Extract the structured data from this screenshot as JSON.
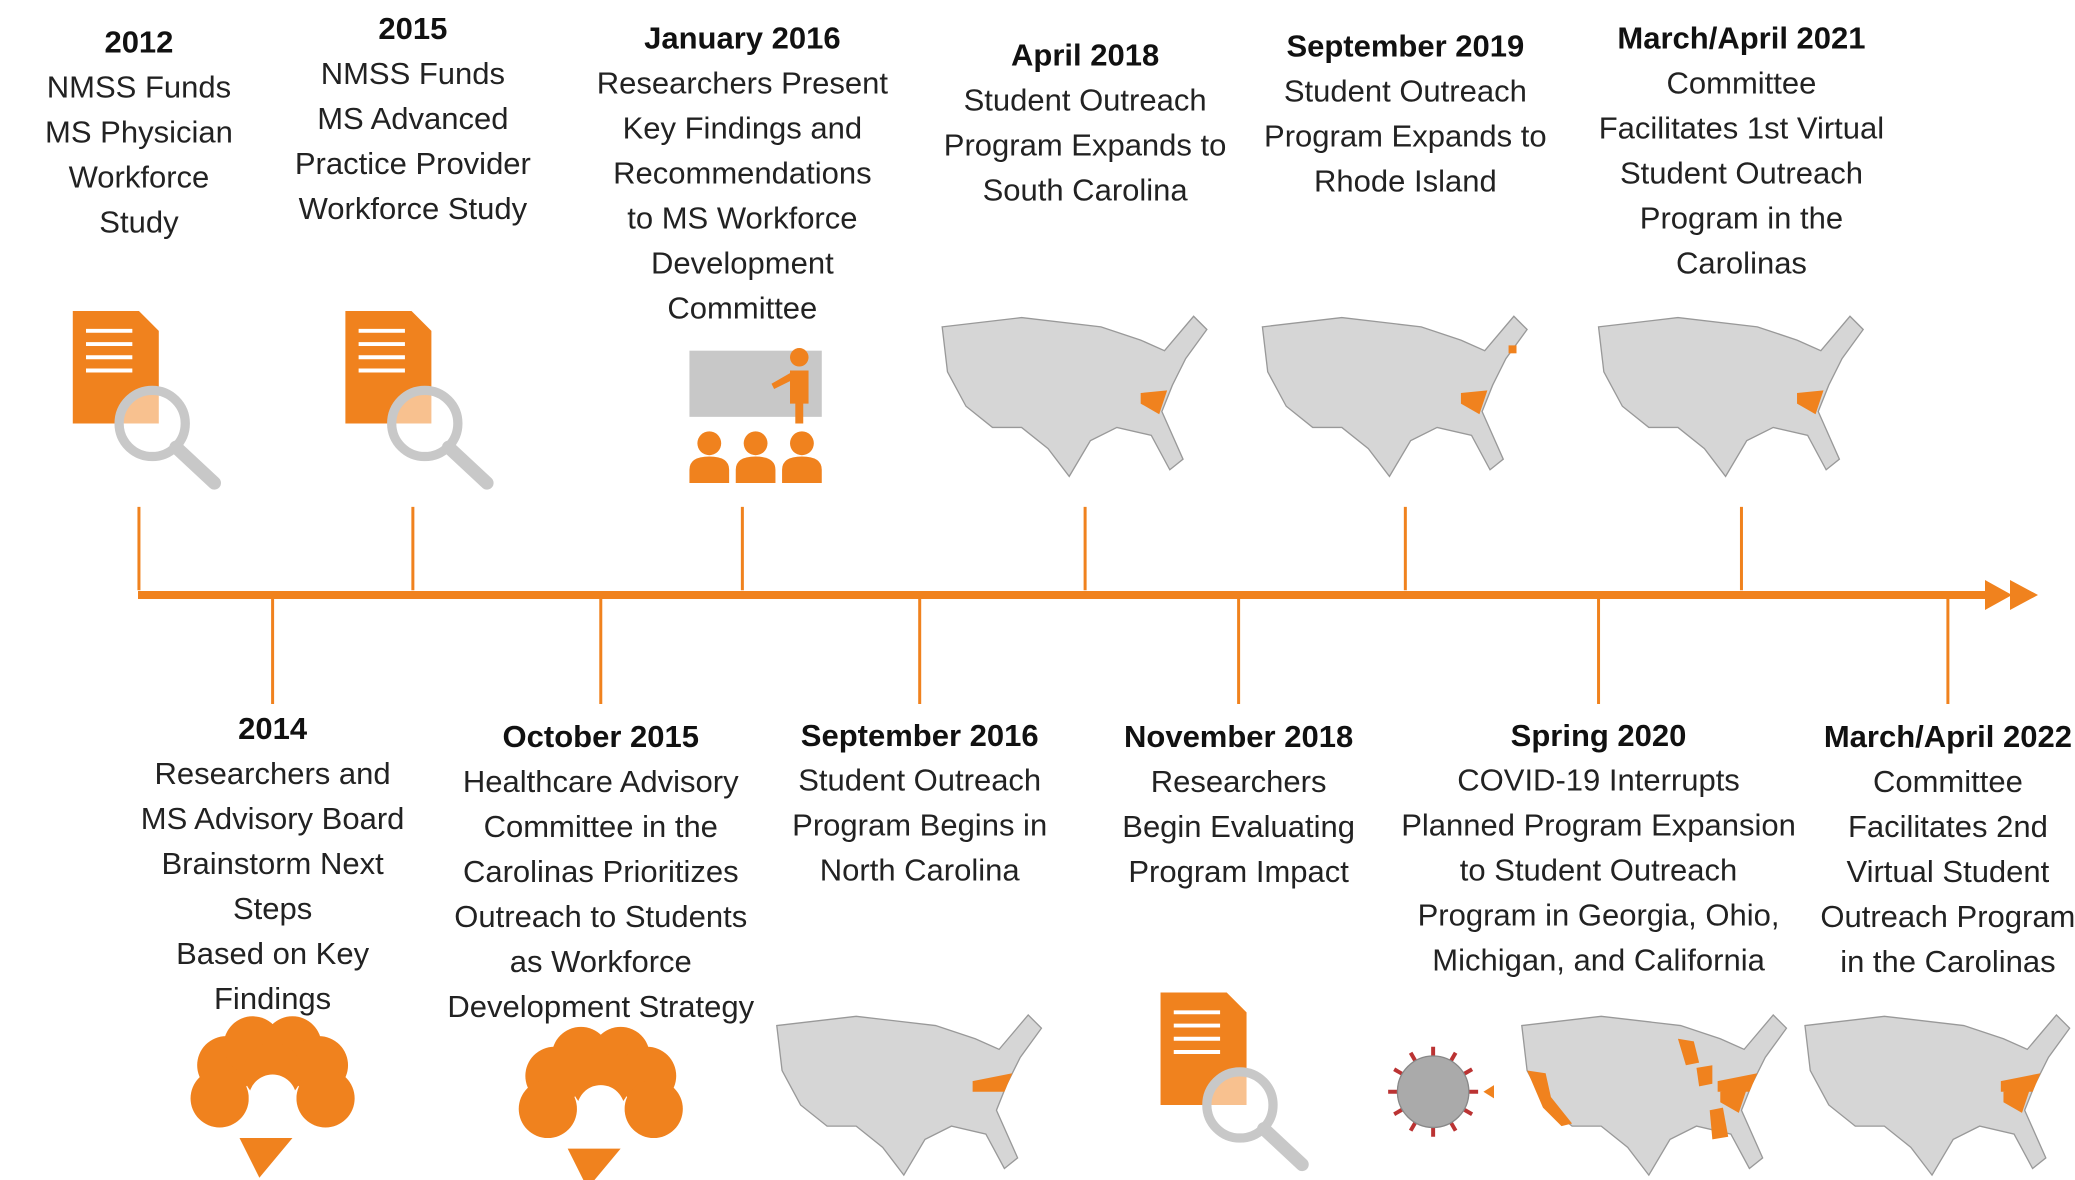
{
  "timeline": {
    "above": [
      {
        "date": "2012",
        "lines": [
          "NMSS Funds",
          "MS Physician",
          "Workforce",
          "Study"
        ]
      },
      {
        "date": "2015",
        "lines": [
          "NMSS Funds",
          "MS Advanced",
          "Practice Provider",
          "Workforce Study"
        ]
      },
      {
        "date": "January 2016",
        "lines": [
          "Researchers Present",
          "Key Findings and",
          "Recommendations",
          "to MS Workforce",
          "Development",
          "Committee"
        ]
      },
      {
        "date": "April 2018",
        "lines": [
          "Student Outreach",
          "Program Expands to",
          "South Carolina"
        ]
      },
      {
        "date": "September 2019",
        "lines": [
          "Student Outreach",
          "Program Expands to",
          "Rhode Island"
        ]
      },
      {
        "date": "March/April 2021",
        "lines": [
          "Committee",
          "Facilitates 1st Virtual",
          "Student Outreach",
          "Program in the",
          "Carolinas"
        ]
      }
    ],
    "below": [
      {
        "date": "2014",
        "lines": [
          "Researchers and",
          "MS Advisory Board",
          "Brainstorm Next",
          "Steps",
          "Based on Key",
          "Findings"
        ]
      },
      {
        "date": "October 2015",
        "lines": [
          "Healthcare Advisory",
          "Committee in the",
          "Carolinas Prioritizes",
          "Outreach to Students",
          "as Workforce",
          "Development Strategy"
        ]
      },
      {
        "date": "September 2016",
        "lines": [
          "Student Outreach",
          "Program Begins in",
          "North Carolina"
        ]
      },
      {
        "date": "November 2018",
        "lines": [
          "Researchers",
          "Begin Evaluating",
          "Program Impact"
        ]
      },
      {
        "date": "Spring 2020",
        "lines": [
          "COVID-19 Interrupts",
          "Planned Program Expansion",
          "to Student Outreach",
          "Program in Georgia, Ohio,",
          "Michigan, and California"
        ]
      },
      {
        "date": "March/April 2022",
        "lines": [
          "Committee",
          "Facilitates 2nd",
          "Virtual Student",
          "Outreach Program",
          "in the Carolinas"
        ]
      }
    ]
  }
}
